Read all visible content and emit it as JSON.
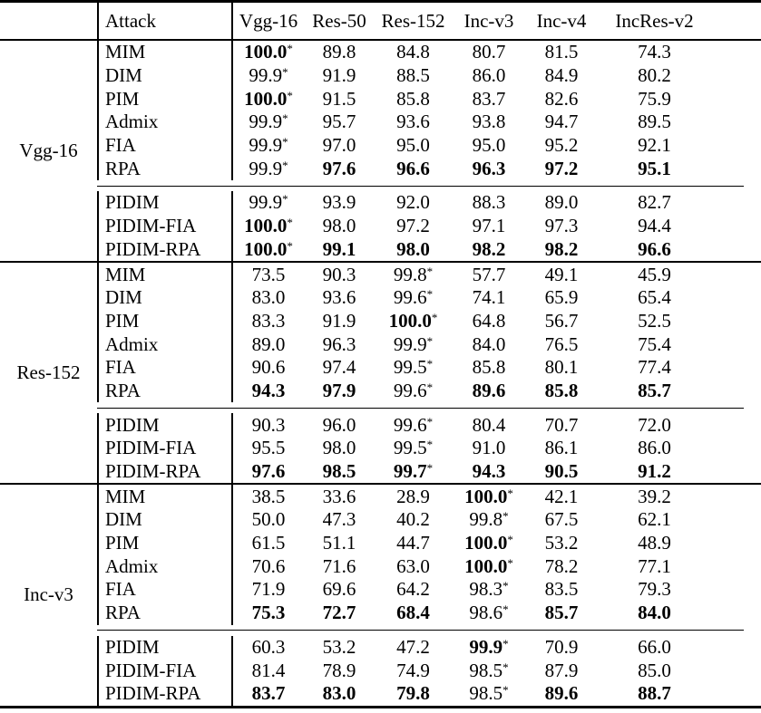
{
  "chart_data": {
    "type": "table",
    "attack_header": "Attack",
    "target_model_columns": [
      "Vgg-16",
      "Res-50",
      "Res-152",
      "Inc-v3",
      "Inc-v4",
      "IncRes-v2"
    ],
    "star_symbol": "*",
    "groups": [
      {
        "source_model": "Vgg-16",
        "rows": [
          {
            "attack": "MIM",
            "cells": [
              {
                "value": "100.0",
                "star": true,
                "bold": true
              },
              {
                "value": "89.8"
              },
              {
                "value": "84.8"
              },
              {
                "value": "80.7"
              },
              {
                "value": "81.5"
              },
              {
                "value": "74.3"
              }
            ]
          },
          {
            "attack": "DIM",
            "cells": [
              {
                "value": "99.9",
                "star": true
              },
              {
                "value": "91.9"
              },
              {
                "value": "88.5"
              },
              {
                "value": "86.0"
              },
              {
                "value": "84.9"
              },
              {
                "value": "80.2"
              }
            ]
          },
          {
            "attack": "PIM",
            "cells": [
              {
                "value": "100.0",
                "star": true,
                "bold": true
              },
              {
                "value": "91.5"
              },
              {
                "value": "85.8"
              },
              {
                "value": "83.7"
              },
              {
                "value": "82.6"
              },
              {
                "value": "75.9"
              }
            ]
          },
          {
            "attack": "Admix",
            "cells": [
              {
                "value": "99.9",
                "star": true
              },
              {
                "value": "95.7"
              },
              {
                "value": "93.6"
              },
              {
                "value": "93.8"
              },
              {
                "value": "94.7"
              },
              {
                "value": "89.5"
              }
            ]
          },
          {
            "attack": "FIA",
            "cells": [
              {
                "value": "99.9",
                "star": true
              },
              {
                "value": "97.0"
              },
              {
                "value": "95.0"
              },
              {
                "value": "95.0"
              },
              {
                "value": "95.2"
              },
              {
                "value": "92.1"
              }
            ]
          },
          {
            "attack": "RPA",
            "cells": [
              {
                "value": "99.9",
                "star": true
              },
              {
                "value": "97.6",
                "bold": true
              },
              {
                "value": "96.6",
                "bold": true
              },
              {
                "value": "96.3",
                "bold": true
              },
              {
                "value": "97.2",
                "bold": true
              },
              {
                "value": "95.1",
                "bold": true
              }
            ]
          }
        ],
        "pidim_rows": [
          {
            "attack": "PIDIM",
            "cells": [
              {
                "value": "99.9",
                "star": true
              },
              {
                "value": "93.9"
              },
              {
                "value": "92.0"
              },
              {
                "value": "88.3"
              },
              {
                "value": "89.0"
              },
              {
                "value": "82.7"
              }
            ]
          },
          {
            "attack": "PIDIM-FIA",
            "cells": [
              {
                "value": "100.0",
                "star": true,
                "bold": true
              },
              {
                "value": "98.0"
              },
              {
                "value": "97.2"
              },
              {
                "value": "97.1"
              },
              {
                "value": "97.3"
              },
              {
                "value": "94.4"
              }
            ]
          },
          {
            "attack": "PIDIM-RPA",
            "cells": [
              {
                "value": "100.0",
                "star": true,
                "bold": true
              },
              {
                "value": "99.1",
                "bold": true
              },
              {
                "value": "98.0",
                "bold": true
              },
              {
                "value": "98.2",
                "bold": true
              },
              {
                "value": "98.2",
                "bold": true
              },
              {
                "value": "96.6",
                "bold": true
              }
            ]
          }
        ]
      },
      {
        "source_model": "Res-152",
        "rows": [
          {
            "attack": "MIM",
            "cells": [
              {
                "value": "73.5"
              },
              {
                "value": "90.3"
              },
              {
                "value": "99.8",
                "star": true
              },
              {
                "value": "57.7"
              },
              {
                "value": "49.1"
              },
              {
                "value": "45.9"
              }
            ]
          },
          {
            "attack": "DIM",
            "cells": [
              {
                "value": "83.0"
              },
              {
                "value": "93.6"
              },
              {
                "value": "99.6",
                "star": true
              },
              {
                "value": "74.1"
              },
              {
                "value": "65.9"
              },
              {
                "value": "65.4"
              }
            ]
          },
          {
            "attack": "PIM",
            "cells": [
              {
                "value": "83.3"
              },
              {
                "value": "91.9"
              },
              {
                "value": "100.0",
                "star": true,
                "bold": true
              },
              {
                "value": "64.8"
              },
              {
                "value": "56.7"
              },
              {
                "value": "52.5"
              }
            ]
          },
          {
            "attack": "Admix",
            "cells": [
              {
                "value": "89.0"
              },
              {
                "value": "96.3"
              },
              {
                "value": "99.9",
                "star": true
              },
              {
                "value": "84.0"
              },
              {
                "value": "76.5"
              },
              {
                "value": "75.4"
              }
            ]
          },
          {
            "attack": "FIA",
            "cells": [
              {
                "value": "90.6"
              },
              {
                "value": "97.4"
              },
              {
                "value": "99.5",
                "star": true
              },
              {
                "value": "85.8"
              },
              {
                "value": "80.1"
              },
              {
                "value": "77.4"
              }
            ]
          },
          {
            "attack": "RPA",
            "cells": [
              {
                "value": "94.3",
                "bold": true
              },
              {
                "value": "97.9",
                "bold": true
              },
              {
                "value": "99.6",
                "star": true
              },
              {
                "value": "89.6",
                "bold": true
              },
              {
                "value": "85.8",
                "bold": true
              },
              {
                "value": "85.7",
                "bold": true
              }
            ]
          }
        ],
        "pidim_rows": [
          {
            "attack": "PIDIM",
            "cells": [
              {
                "value": "90.3"
              },
              {
                "value": "96.0"
              },
              {
                "value": "99.6",
                "star": true
              },
              {
                "value": "80.4"
              },
              {
                "value": "70.7"
              },
              {
                "value": "72.0"
              }
            ]
          },
          {
            "attack": "PIDIM-FIA",
            "cells": [
              {
                "value": "95.5"
              },
              {
                "value": "98.0"
              },
              {
                "value": "99.5",
                "star": true
              },
              {
                "value": "91.0"
              },
              {
                "value": "86.1"
              },
              {
                "value": "86.0"
              }
            ]
          },
          {
            "attack": "PIDIM-RPA",
            "cells": [
              {
                "value": "97.6",
                "bold": true
              },
              {
                "value": "98.5",
                "bold": true
              },
              {
                "value": "99.7",
                "star": true,
                "bold": true
              },
              {
                "value": "94.3",
                "bold": true
              },
              {
                "value": "90.5",
                "bold": true
              },
              {
                "value": "91.2",
                "bold": true
              }
            ]
          }
        ]
      },
      {
        "source_model": "Inc-v3",
        "rows": [
          {
            "attack": "MIM",
            "cells": [
              {
                "value": "38.5"
              },
              {
                "value": "33.6"
              },
              {
                "value": "28.9"
              },
              {
                "value": "100.0",
                "star": true,
                "bold": true
              },
              {
                "value": "42.1"
              },
              {
                "value": "39.2"
              }
            ]
          },
          {
            "attack": "DIM",
            "cells": [
              {
                "value": "50.0"
              },
              {
                "value": "47.3"
              },
              {
                "value": "40.2"
              },
              {
                "value": "99.8",
                "star": true
              },
              {
                "value": "67.5"
              },
              {
                "value": "62.1"
              }
            ]
          },
          {
            "attack": "PIM",
            "cells": [
              {
                "value": "61.5"
              },
              {
                "value": "51.1"
              },
              {
                "value": "44.7"
              },
              {
                "value": "100.0",
                "star": true,
                "bold": true
              },
              {
                "value": "53.2"
              },
              {
                "value": "48.9"
              }
            ]
          },
          {
            "attack": "Admix",
            "cells": [
              {
                "value": "70.6"
              },
              {
                "value": "71.6"
              },
              {
                "value": "63.0"
              },
              {
                "value": "100.0",
                "star": true,
                "bold": true
              },
              {
                "value": "78.2"
              },
              {
                "value": "77.1"
              }
            ]
          },
          {
            "attack": "FIA",
            "cells": [
              {
                "value": "71.9"
              },
              {
                "value": "69.6"
              },
              {
                "value": "64.2"
              },
              {
                "value": "98.3",
                "star": true
              },
              {
                "value": "83.5"
              },
              {
                "value": "79.3"
              }
            ]
          },
          {
            "attack": "RPA",
            "cells": [
              {
                "value": "75.3",
                "bold": true
              },
              {
                "value": "72.7",
                "bold": true
              },
              {
                "value": "68.4",
                "bold": true
              },
              {
                "value": "98.6",
                "star": true
              },
              {
                "value": "85.7",
                "bold": true
              },
              {
                "value": "84.0",
                "bold": true
              }
            ]
          }
        ],
        "pidim_rows": [
          {
            "attack": "PIDIM",
            "cells": [
              {
                "value": "60.3"
              },
              {
                "value": "53.2"
              },
              {
                "value": "47.2"
              },
              {
                "value": "99.9",
                "star": true,
                "bold": true
              },
              {
                "value": "70.9"
              },
              {
                "value": "66.0"
              }
            ]
          },
          {
            "attack": "PIDIM-FIA",
            "cells": [
              {
                "value": "81.4"
              },
              {
                "value": "78.9"
              },
              {
                "value": "74.9"
              },
              {
                "value": "98.5",
                "star": true
              },
              {
                "value": "87.9"
              },
              {
                "value": "85.0"
              }
            ]
          },
          {
            "attack": "PIDIM-RPA",
            "cells": [
              {
                "value": "83.7",
                "bold": true
              },
              {
                "value": "83.0",
                "bold": true
              },
              {
                "value": "79.8",
                "bold": true
              },
              {
                "value": "98.5",
                "star": true
              },
              {
                "value": "89.6",
                "bold": true
              },
              {
                "value": "88.7",
                "bold": true
              }
            ]
          }
        ]
      }
    ]
  }
}
